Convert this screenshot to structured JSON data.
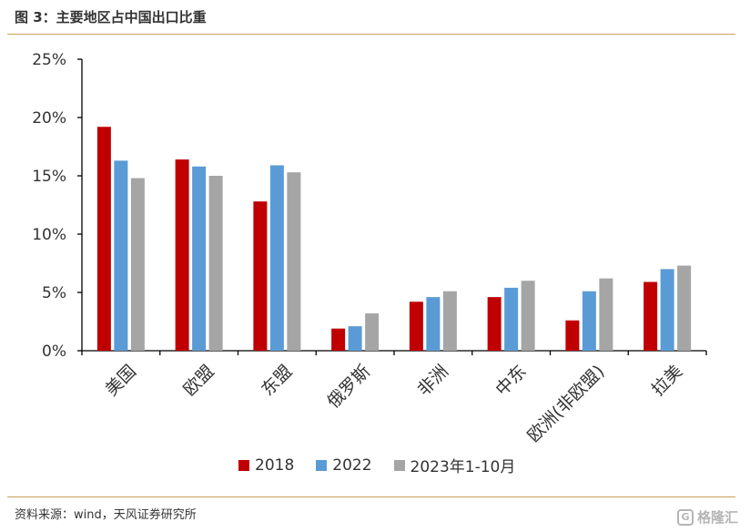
{
  "header": {
    "title": "图 3：主要地区占中国出口比重"
  },
  "footer": {
    "source": "资料来源：wind，天风证券研究所",
    "watermark_mark": "G",
    "watermark_text": "格隆汇"
  },
  "chart_data": {
    "type": "bar",
    "title": "",
    "xlabel": "",
    "ylabel": "",
    "categories": [
      "美国",
      "欧盟",
      "东盟",
      "俄罗斯",
      "非洲",
      "中东",
      "欧洲(非欧盟)",
      "拉美"
    ],
    "series": [
      {
        "name": "2018",
        "color": "#c00000",
        "values": [
          19.2,
          16.4,
          12.8,
          1.9,
          4.2,
          4.6,
          2.6,
          5.9
        ]
      },
      {
        "name": "2022",
        "color": "#5b9bd5",
        "values": [
          16.3,
          15.8,
          15.9,
          2.1,
          4.6,
          5.4,
          5.1,
          7.0
        ]
      },
      {
        "name": "2023年1-10月",
        "color": "#a5a5a5",
        "values": [
          14.8,
          15.0,
          15.3,
          3.2,
          5.1,
          6.0,
          6.2,
          7.3
        ]
      }
    ],
    "ylim": [
      0,
      25
    ],
    "yticks": [
      "0%",
      "5%",
      "10%",
      "15%",
      "20%",
      "25%"
    ],
    "grid": false,
    "legend_position": "bottom"
  }
}
